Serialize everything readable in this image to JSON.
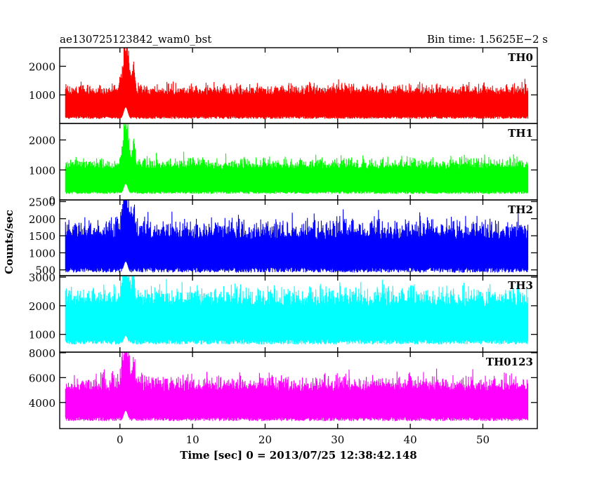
{
  "header": {
    "left_title": "ae130725123842_wam0_bst",
    "right_title": "Bin time: 1.5625E−2 s"
  },
  "chart_data": {
    "type": "line",
    "xlabel": "Time [sec] 0 = 2013/07/25 12:38:42.148",
    "ylabel": "Counts/sec",
    "xlim": [
      -8.3,
      57.5
    ],
    "data_range": [
      -7.5,
      56.2
    ],
    "x_ticks": [
      0,
      10,
      20,
      30,
      40,
      50
    ],
    "burst_time": 0.8,
    "panels": [
      {
        "name": "TH0",
        "color": "#ff0000",
        "ylim": [
          0,
          2650
        ],
        "y_ticks": [
          1000,
          2000
        ],
        "y_tick_labels": [
          "1000",
          "2000"
        ],
        "baseline_counts": 830,
        "noise_amplitude": 260,
        "peak_counts": 2650,
        "lower_envelope": 160
      },
      {
        "name": "TH1",
        "color": "#00ff00",
        "ylim": [
          0,
          2550
        ],
        "y_ticks": [
          0,
          1000,
          2000
        ],
        "y_tick_labels": [
          "0",
          "1000",
          "2000"
        ],
        "baseline_counts": 850,
        "noise_amplitude": 260,
        "peak_counts": 2350,
        "lower_envelope": 200
      },
      {
        "name": "TH2",
        "color": "#0000ff",
        "ylim": [
          330,
          2550
        ],
        "y_ticks": [
          500,
          1000,
          1500,
          2000,
          2500
        ],
        "y_tick_labels": [
          "500",
          "1000",
          "1500",
          "2000",
          "2500"
        ],
        "baseline_counts": 1100,
        "noise_amplitude": 430,
        "peak_counts": 2550,
        "lower_envelope": 420
      },
      {
        "name": "TH3",
        "color": "#00ffff",
        "ylim": [
          380,
          3050
        ],
        "y_ticks": [
          1000,
          2000,
          3000
        ],
        "y_tick_labels": [
          "1000",
          "2000",
          "3000"
        ],
        "baseline_counts": 1650,
        "noise_amplitude": 480,
        "peak_counts": 3000,
        "lower_envelope": 650
      },
      {
        "name": "TH0123",
        "color": "#ff00ff",
        "ylim": [
          1900,
          8050
        ],
        "y_ticks": [
          4000,
          6000,
          8000
        ],
        "y_tick_labels": [
          "4000",
          "6000",
          "8000"
        ],
        "baseline_counts": 4300,
        "noise_amplitude": 900,
        "peak_counts": 8050,
        "lower_envelope": 2500
      }
    ]
  }
}
